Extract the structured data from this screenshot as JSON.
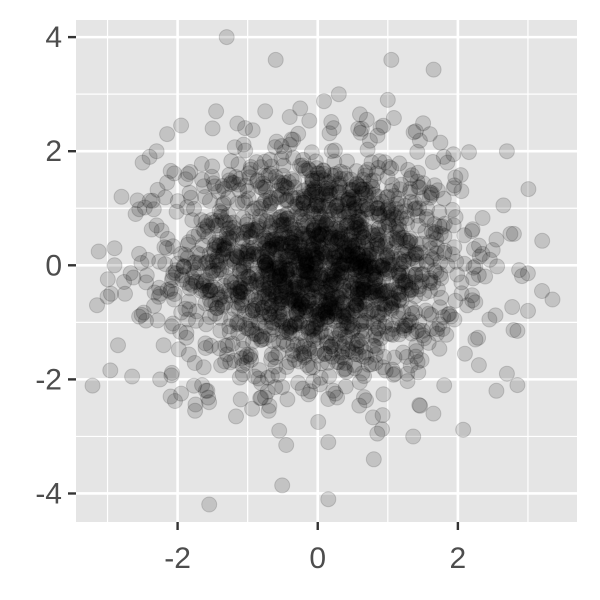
{
  "chart_data": {
    "type": "scatter",
    "title": "",
    "xlabel": "",
    "ylabel": "",
    "xlim": [
      -3.45,
      3.7
    ],
    "ylim": [
      -4.5,
      4.3
    ],
    "x_ticks": [
      -2,
      0,
      2
    ],
    "x_tick_labels": [
      "-2",
      "0",
      "2"
    ],
    "y_ticks": [
      -4,
      -2,
      0,
      2,
      4
    ],
    "y_tick_labels": [
      "-4",
      "-2",
      "0",
      "2",
      "4"
    ],
    "grid": true,
    "legend": "none",
    "point_color": "#000000",
    "point_opacity": 0.15,
    "panel_background": "#e5e5e5",
    "grid_color": "#ffffff",
    "text_color": "#4d4d4d",
    "n_points": 2000,
    "distribution": "approximately bivariate normal, mean 0, sd 1 (x and y independent)",
    "points": [
      [
        -1.3,
        4.0
      ],
      [
        -0.6,
        3.6
      ],
      [
        1.05,
        3.6
      ],
      [
        0.3,
        3.0
      ],
      [
        1.0,
        2.9
      ],
      [
        -1.45,
        2.7
      ],
      [
        -0.75,
        2.7
      ],
      [
        -0.4,
        2.6
      ],
      [
        -0.25,
        2.75
      ],
      [
        0.7,
        2.55
      ],
      [
        -2.15,
        2.3
      ],
      [
        -1.5,
        2.4
      ],
      [
        -1.95,
        2.45
      ],
      [
        1.4,
        2.35
      ],
      [
        1.6,
        2.3
      ],
      [
        1.75,
        2.15
      ],
      [
        2.7,
        2.0
      ],
      [
        -2.4,
        1.9
      ],
      [
        -2.3,
        2.0
      ],
      [
        -2.5,
        1.8
      ],
      [
        1.85,
        1.8
      ],
      [
        -1.85,
        1.6
      ],
      [
        -1.65,
        1.5
      ],
      [
        1.95,
        1.4
      ],
      [
        2.05,
        1.3
      ],
      [
        -2.8,
        1.2
      ],
      [
        -2.6,
        0.9
      ],
      [
        -2.9,
        0.3
      ],
      [
        -2.3,
        0.7
      ],
      [
        -2.55,
        0.2
      ],
      [
        -3.15,
        -0.7
      ],
      [
        -2.95,
        -0.5
      ],
      [
        -2.75,
        -0.5
      ],
      [
        -2.45,
        -0.3
      ],
      [
        -2.25,
        -0.5
      ],
      [
        -2.85,
        -1.4
      ],
      [
        -2.55,
        -0.9
      ],
      [
        -2.65,
        -1.95
      ],
      [
        -2.25,
        -2.0
      ],
      [
        -2.1,
        -2.3
      ],
      [
        -1.75,
        -2.55
      ],
      [
        -1.55,
        -2.4
      ],
      [
        -1.95,
        -2.25
      ],
      [
        -1.1,
        -2.35
      ],
      [
        -0.7,
        -2.55
      ],
      [
        -0.55,
        -2.9
      ],
      [
        -0.45,
        -3.15
      ],
      [
        0.15,
        -3.1
      ],
      [
        0.85,
        -2.95
      ],
      [
        0.8,
        -3.4
      ],
      [
        0.15,
        -4.1
      ],
      [
        1.45,
        -2.45
      ],
      [
        1.65,
        -2.6
      ],
      [
        2.3,
        -1.75
      ],
      [
        2.55,
        -2.2
      ],
      [
        2.85,
        -2.1
      ],
      [
        2.7,
        -1.9
      ],
      [
        2.85,
        -1.15
      ],
      [
        3.0,
        -0.8
      ],
      [
        3.2,
        -0.45
      ],
      [
        3.35,
        -0.6
      ],
      [
        2.8,
        0.55
      ],
      [
        2.65,
        1.05
      ],
      [
        2.55,
        0.45
      ],
      [
        2.35,
        0.2
      ],
      [
        2.2,
        0.6
      ],
      [
        2.05,
        -0.3
      ],
      [
        1.95,
        -0.95
      ],
      [
        2.1,
        -1.55
      ],
      [
        1.7,
        -1.2
      ],
      [
        1.4,
        -1.6
      ],
      [
        1.1,
        -1.9
      ],
      [
        0.6,
        -2.05
      ],
      [
        0.25,
        -2.25
      ],
      [
        -0.15,
        -1.75
      ],
      [
        -0.9,
        -1.95
      ],
      [
        -1.25,
        -1.7
      ],
      [
        -1.6,
        -1.45
      ],
      [
        -1.85,
        -0.95
      ],
      [
        -2.05,
        -0.6
      ],
      [
        -1.95,
        0.2
      ],
      [
        -1.7,
        0.55
      ],
      [
        -1.4,
        0.95
      ],
      [
        -1.0,
        1.3
      ],
      [
        -0.6,
        1.55
      ],
      [
        -0.2,
        1.7
      ],
      [
        0.25,
        1.6
      ],
      [
        0.65,
        1.5
      ],
      [
        1.05,
        1.3
      ],
      [
        1.4,
        1.0
      ],
      [
        1.65,
        0.55
      ],
      [
        1.75,
        0.05
      ],
      [
        1.6,
        -0.45
      ],
      [
        1.35,
        -0.85
      ],
      [
        1.0,
        -1.2
      ],
      [
        0.55,
        -1.45
      ],
      [
        0.1,
        -1.55
      ],
      [
        -0.35,
        -1.5
      ],
      [
        -0.8,
        -1.3
      ],
      [
        -1.15,
        -1.0
      ],
      [
        -1.4,
        -0.6
      ],
      [
        -1.5,
        -0.1
      ],
      [
        -1.45,
        0.4
      ],
      [
        -1.2,
        0.75
      ],
      [
        -0.85,
        1.0
      ],
      [
        -0.45,
        1.15
      ],
      [
        0.0,
        1.2
      ],
      [
        0.45,
        1.1
      ],
      [
        0.85,
        0.9
      ],
      [
        1.15,
        0.55
      ],
      [
        1.3,
        0.1
      ],
      [
        1.25,
        -0.35
      ],
      [
        1.05,
        -0.75
      ],
      [
        0.7,
        -1.0
      ],
      [
        0.3,
        -1.15
      ],
      [
        -0.15,
        -1.1
      ],
      [
        -0.55,
        -0.95
      ],
      [
        -0.9,
        -0.7
      ],
      [
        -1.1,
        -0.3
      ],
      [
        -1.15,
        0.15
      ],
      [
        -0.95,
        0.5
      ],
      [
        -0.65,
        0.75
      ],
      [
        -0.25,
        0.85
      ],
      [
        0.15,
        0.8
      ],
      [
        0.55,
        0.65
      ],
      [
        0.85,
        0.35
      ],
      [
        0.95,
        -0.05
      ],
      [
        0.85,
        -0.45
      ],
      [
        0.55,
        -0.7
      ],
      [
        0.15,
        -0.8
      ],
      [
        -0.25,
        -0.75
      ],
      [
        -0.6,
        -0.55
      ],
      [
        -0.8,
        -0.2
      ],
      [
        -0.8,
        0.2
      ],
      [
        -0.55,
        0.45
      ],
      [
        -0.2,
        0.55
      ],
      [
        0.2,
        0.5
      ],
      [
        0.5,
        0.3
      ],
      [
        0.6,
        -0.05
      ],
      [
        0.5,
        -0.4
      ],
      [
        0.2,
        -0.5
      ],
      [
        -0.15,
        -0.45
      ],
      [
        -0.4,
        -0.25
      ],
      [
        -0.45,
        0.1
      ],
      [
        -0.2,
        0.25
      ],
      [
        0.1,
        0.2
      ],
      [
        0.3,
        0.0
      ],
      [
        0.15,
        -0.2
      ],
      [
        -0.1,
        -0.15
      ],
      [
        0.0,
        0.05
      ],
      [
        2.75,
        0.55
      ],
      [
        2.25,
        -1.3
      ],
      [
        -2.9,
        0.0
      ],
      [
        -3.0,
        -0.55
      ],
      [
        -2.15,
        1.45
      ],
      [
        -2.2,
        -1.4
      ],
      [
        -1.65,
        -2.1
      ],
      [
        1.8,
        1.9
      ],
      [
        2.45,
        -0.95
      ],
      [
        -0.35,
        2.2
      ]
    ]
  }
}
